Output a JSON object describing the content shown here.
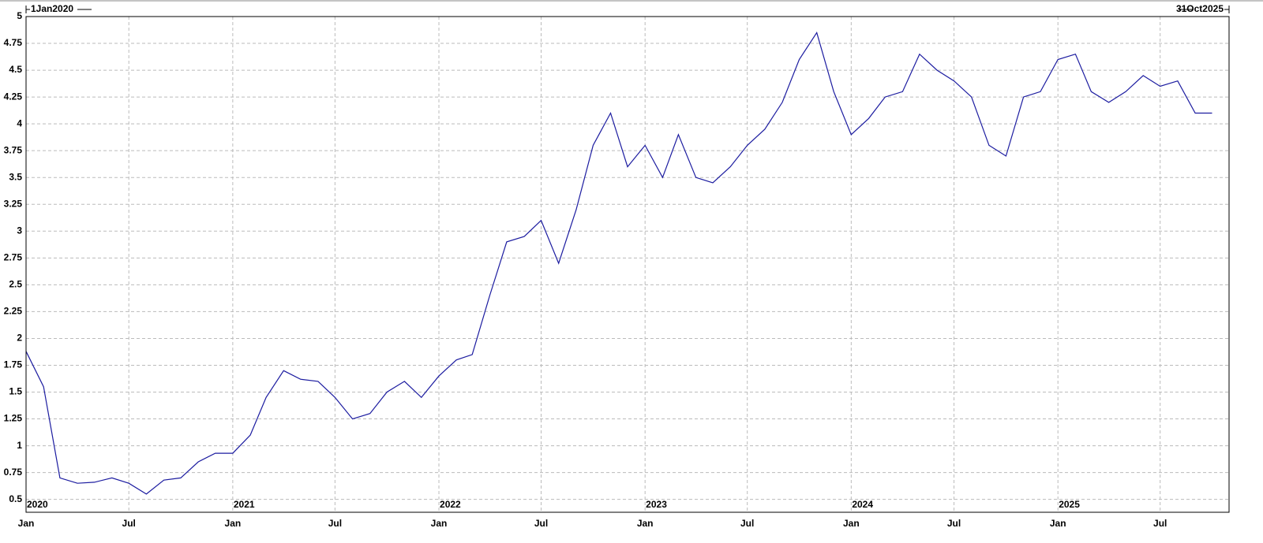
{
  "chart_data": {
    "type": "line",
    "range_start_label": "1Jan2020",
    "range_end_label": "31Oct2025",
    "x": [
      "2020-01",
      "2020-02",
      "2020-03",
      "2020-04",
      "2020-05",
      "2020-06",
      "2020-07",
      "2020-08",
      "2020-09",
      "2020-10",
      "2020-11",
      "2020-12",
      "2021-01",
      "2021-02",
      "2021-03",
      "2021-04",
      "2021-05",
      "2021-06",
      "2021-07",
      "2021-08",
      "2021-09",
      "2021-10",
      "2021-11",
      "2021-12",
      "2022-01",
      "2022-02",
      "2022-03",
      "2022-04",
      "2022-05",
      "2022-06",
      "2022-07",
      "2022-08",
      "2022-09",
      "2022-10",
      "2022-11",
      "2022-12",
      "2023-01",
      "2023-02",
      "2023-03",
      "2023-04",
      "2023-05",
      "2023-06",
      "2023-07",
      "2023-08",
      "2023-09",
      "2023-10",
      "2023-11",
      "2023-12",
      "2024-01",
      "2024-02",
      "2024-03",
      "2024-04",
      "2024-05",
      "2024-06",
      "2024-07",
      "2024-08",
      "2024-09",
      "2024-10",
      "2024-11",
      "2024-12",
      "2025-01",
      "2025-02",
      "2025-03",
      "2025-04",
      "2025-05",
      "2025-06",
      "2025-07",
      "2025-08",
      "2025-09",
      "2025-10"
    ],
    "series": [
      {
        "color": "#1c1ca0",
        "values": [
          1.88,
          1.55,
          0.7,
          0.65,
          0.66,
          0.7,
          0.65,
          0.55,
          0.68,
          0.7,
          0.85,
          0.93,
          0.93,
          1.1,
          1.45,
          1.7,
          1.62,
          1.6,
          1.45,
          1.25,
          1.3,
          1.5,
          1.6,
          1.45,
          1.65,
          1.8,
          1.85,
          2.4,
          2.9,
          2.95,
          3.1,
          2.7,
          3.2,
          3.8,
          4.1,
          3.6,
          3.8,
          3.5,
          3.9,
          3.5,
          3.45,
          3.6,
          3.8,
          3.95,
          4.2,
          4.6,
          4.85,
          4.3,
          3.9,
          4.05,
          4.25,
          4.3,
          4.65,
          4.5,
          4.4,
          4.25,
          3.8,
          3.7,
          4.25,
          4.3,
          4.6,
          4.65,
          4.3,
          4.2,
          4.3,
          4.45,
          4.35,
          4.4,
          4.1,
          4.1
        ]
      }
    ],
    "xlim": [
      "2020-01-01",
      "2025-10-31"
    ],
    "ylim": [
      0.38,
      5
    ],
    "yticks": [
      0.5,
      0.75,
      1,
      1.25,
      1.5,
      1.75,
      2,
      2.25,
      2.5,
      2.75,
      3,
      3.25,
      3.5,
      3.75,
      4,
      4.25,
      4.5,
      4.75,
      5
    ],
    "xticks": [
      {
        "value": "2020-01",
        "label": "Jan"
      },
      {
        "value": "2020-07",
        "label": "Jul"
      },
      {
        "value": "2021-01",
        "label": "Jan"
      },
      {
        "value": "2021-07",
        "label": "Jul"
      },
      {
        "value": "2022-01",
        "label": "Jan"
      },
      {
        "value": "2022-07",
        "label": "Jul"
      },
      {
        "value": "2023-01",
        "label": "Jan"
      },
      {
        "value": "2023-07",
        "label": "Jul"
      },
      {
        "value": "2024-01",
        "label": "Jan"
      },
      {
        "value": "2024-07",
        "label": "Jul"
      },
      {
        "value": "2025-01",
        "label": "Jan"
      },
      {
        "value": "2025-07",
        "label": "Jul"
      }
    ],
    "year_labels": [
      {
        "value": "2020-01",
        "label": "2020"
      },
      {
        "value": "2021-01",
        "label": "2021"
      },
      {
        "value": "2022-01",
        "label": "2022"
      },
      {
        "value": "2023-01",
        "label": "2023"
      },
      {
        "value": "2024-01",
        "label": "2024"
      },
      {
        "value": "2025-01",
        "label": "2025"
      }
    ],
    "grid": true
  }
}
